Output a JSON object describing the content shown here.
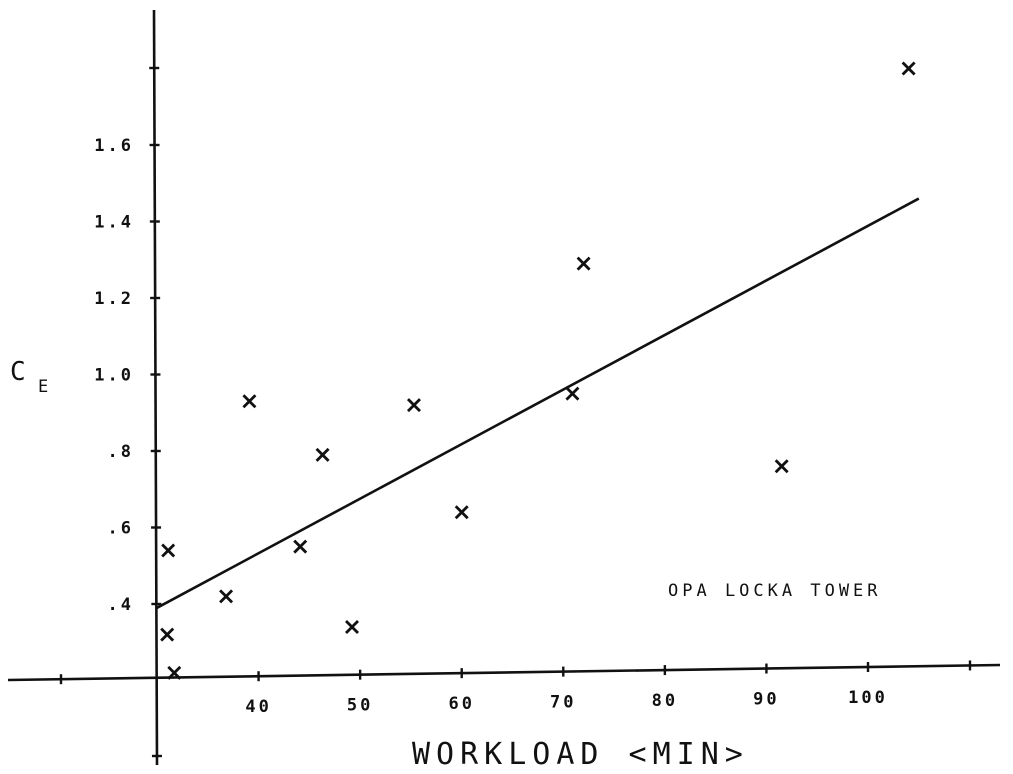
{
  "chart_data": {
    "type": "scatter",
    "title": "",
    "xlabel": "WORKLOAD <MIN>",
    "ylabel": "C",
    "ylabel_subscript": "E",
    "xlim": [
      30,
      110
    ],
    "ylim": [
      0.2,
      2.0
    ],
    "x_ticks": [
      40,
      50,
      60,
      70,
      80,
      90,
      100
    ],
    "x_tick_labels": [
      "40",
      "50",
      "60",
      "70",
      "80",
      "90",
      "100"
    ],
    "y_ticks": [
      0.4,
      0.6,
      0.8,
      1.0,
      1.2,
      1.4,
      1.6
    ],
    "y_tick_labels": [
      ".4",
      ".6",
      ".8",
      "1.0",
      "1.2",
      "1.4",
      "1.6"
    ],
    "grid": false,
    "annotation": "OPA LOCKA TOWER",
    "series": [
      {
        "points": [
          {
            "x": 31.1,
            "y": 0.54
          },
          {
            "x": 31.0,
            "y": 0.32
          },
          {
            "x": 31.7,
            "y": 0.22
          },
          {
            "x": 36.8,
            "y": 0.42
          },
          {
            "x": 39.1,
            "y": 0.93
          },
          {
            "x": 44.1,
            "y": 0.55
          },
          {
            "x": 46.3,
            "y": 0.79
          },
          {
            "x": 49.2,
            "y": 0.34
          },
          {
            "x": 55.3,
            "y": 0.92
          },
          {
            "x": 60.0,
            "y": 0.64
          },
          {
            "x": 70.9,
            "y": 0.95
          },
          {
            "x": 72.0,
            "y": 1.29
          },
          {
            "x": 91.5,
            "y": 0.76
          },
          {
            "x": 104.0,
            "y": 1.8
          }
        ],
        "fit_line": {
          "x": [
            30,
            105
          ],
          "y": [
            0.39,
            1.46
          ]
        }
      }
    ]
  }
}
